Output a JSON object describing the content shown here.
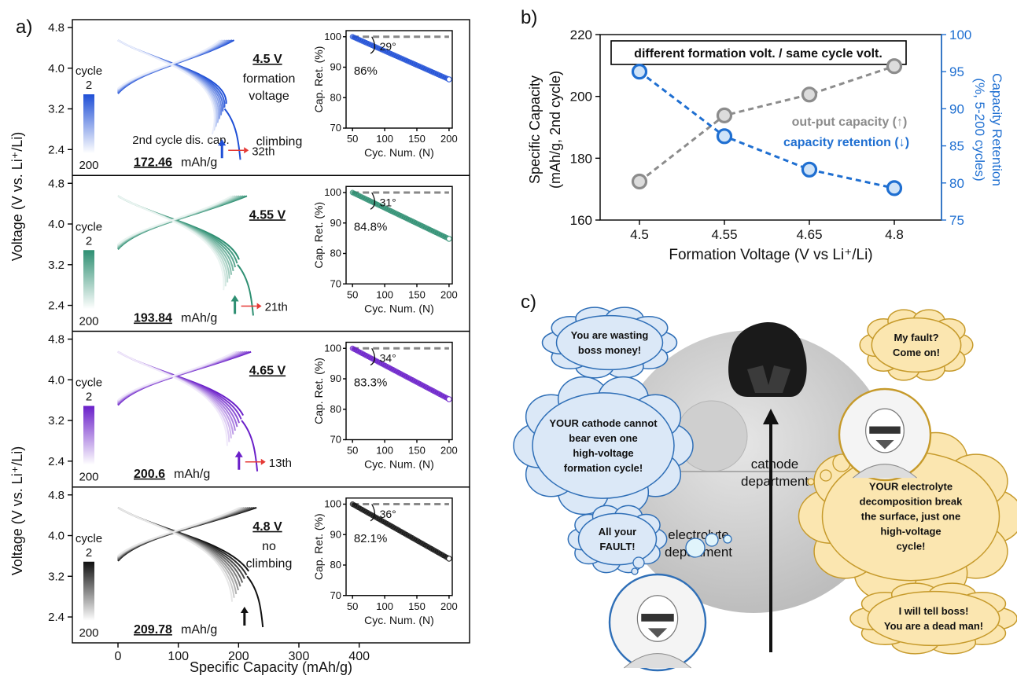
{
  "panel_labels": {
    "a": "a)",
    "b": "b)",
    "c": "c)"
  },
  "panel_a": {
    "y_axis_label_top": "Voltage (V vs. Li⁺/Li)",
    "y_axis_label_bottom": "Voltage (V vs. Li⁺/Li)",
    "x_axis_label": "Specific Capacity (mAh/g)",
    "x_ticks": [
      "0",
      "100",
      "200",
      "300",
      "400"
    ],
    "y_ticks": [
      "4.8",
      "4.0",
      "3.2",
      "2.4"
    ],
    "colorbar_label": "cycle",
    "colorbar_top": "2",
    "colorbar_bottom": "200",
    "unit_suffix": "mAh/g",
    "rows": [
      {
        "voltage_label": "4.5 V",
        "note": [
          "formation",
          "voltage"
        ],
        "second_cycle_note": "2nd cycle dis. cap.",
        "capacity": "172.46",
        "climb_label": "climbing",
        "climb_cycle": "32th",
        "color": "#1f4fd6",
        "inset_retention": "86%",
        "inset_angle": "29°"
      },
      {
        "voltage_label": "4.55 V",
        "note": [],
        "capacity": "193.84",
        "climb_cycle": "21th",
        "color": "#2e8f72",
        "inset_retention": "84.8%",
        "inset_angle": "31°"
      },
      {
        "voltage_label": "4.65 V",
        "note": [],
        "capacity": "200.6",
        "climb_cycle": "13th",
        "color": "#6a1fc9",
        "inset_retention": "83.3%",
        "inset_angle": "34°"
      },
      {
        "voltage_label": "4.8 V",
        "note": [
          "no",
          "climbing"
        ],
        "capacity": "209.78",
        "climb_cycle": "",
        "color": "#111111",
        "inset_retention": "82.1%",
        "inset_angle": "36°"
      }
    ],
    "inset": {
      "ylabel": "Cap. Ret. (%)",
      "xlabel": "Cyc. Num. (N)",
      "x_ticks": [
        "50",
        "100",
        "150",
        "200"
      ],
      "y_ticks": [
        "100",
        "90",
        "80",
        "70"
      ]
    }
  },
  "chart_data": [
    {
      "type": "scatter",
      "title": "different formation volt. / same cycle volt.",
      "xlabel": "Formation Voltage (V vs Li⁺/Li)",
      "ylabel": "Specific Capacity (mAh/g, 2nd cycle)",
      "y2label": "Capacity Retention (%, 5-200 cycles)",
      "categories": [
        "4.5",
        "4.55",
        "4.65",
        "4.8"
      ],
      "ylim": [
        160,
        220
      ],
      "y2lim": [
        75,
        100
      ],
      "y_ticks": [
        "220",
        "200",
        "180",
        "160"
      ],
      "y2_ticks": [
        "100",
        "95",
        "90",
        "85",
        "80",
        "75"
      ],
      "series": [
        {
          "name": "out-put capacity (↑)",
          "axis": "left",
          "color": "#8c8c8c",
          "values": [
            172.46,
            193.84,
            200.6,
            209.78
          ]
        },
        {
          "name": "capacity retention (↓)",
          "axis": "right",
          "color": "#1f6fd1",
          "values": [
            95,
            86.3,
            81.8,
            79.3
          ]
        }
      ]
    },
    {
      "type": "line",
      "title": "",
      "xlabel": "Cyc. Num. (N)",
      "ylabel": "Cap. Ret. (%)",
      "xlim": [
        40,
        205
      ],
      "ylim": [
        70,
        102
      ],
      "series": [
        {
          "name": "",
          "x": [
            50,
            200
          ],
          "values": [
            100,
            86.0
          ]
        },
        {
          "name": "",
          "x": [
            50,
            200
          ],
          "values": [
            100,
            84.8
          ]
        },
        {
          "name": "",
          "x": [
            50,
            200
          ],
          "values": [
            100,
            83.3
          ]
        },
        {
          "name": "",
          "x": [
            50,
            200
          ],
          "values": [
            100,
            82.1
          ]
        }
      ]
    }
  ],
  "panel_c": {
    "bubbles": {
      "wasting": [
        "You are wasting",
        "boss money!"
      ],
      "cathode_fault": [
        "YOUR cathode cannot",
        "bear even one",
        "high-voltage",
        "formation cycle!"
      ],
      "all_fault": [
        "All your",
        "FAULT!"
      ],
      "my_fault": [
        "My fault?",
        "Come on!"
      ],
      "electrolyte_fault": [
        "YOUR electrolyte",
        "decomposition break",
        "the surface, just one",
        "high-voltage",
        "cycle!"
      ],
      "tell_boss": [
        "I will tell boss!",
        "You are a dead man!"
      ]
    },
    "labels": {
      "cathode": [
        "cathode",
        "department"
      ],
      "electrolyte": [
        "electrolyte",
        "department"
      ]
    }
  }
}
